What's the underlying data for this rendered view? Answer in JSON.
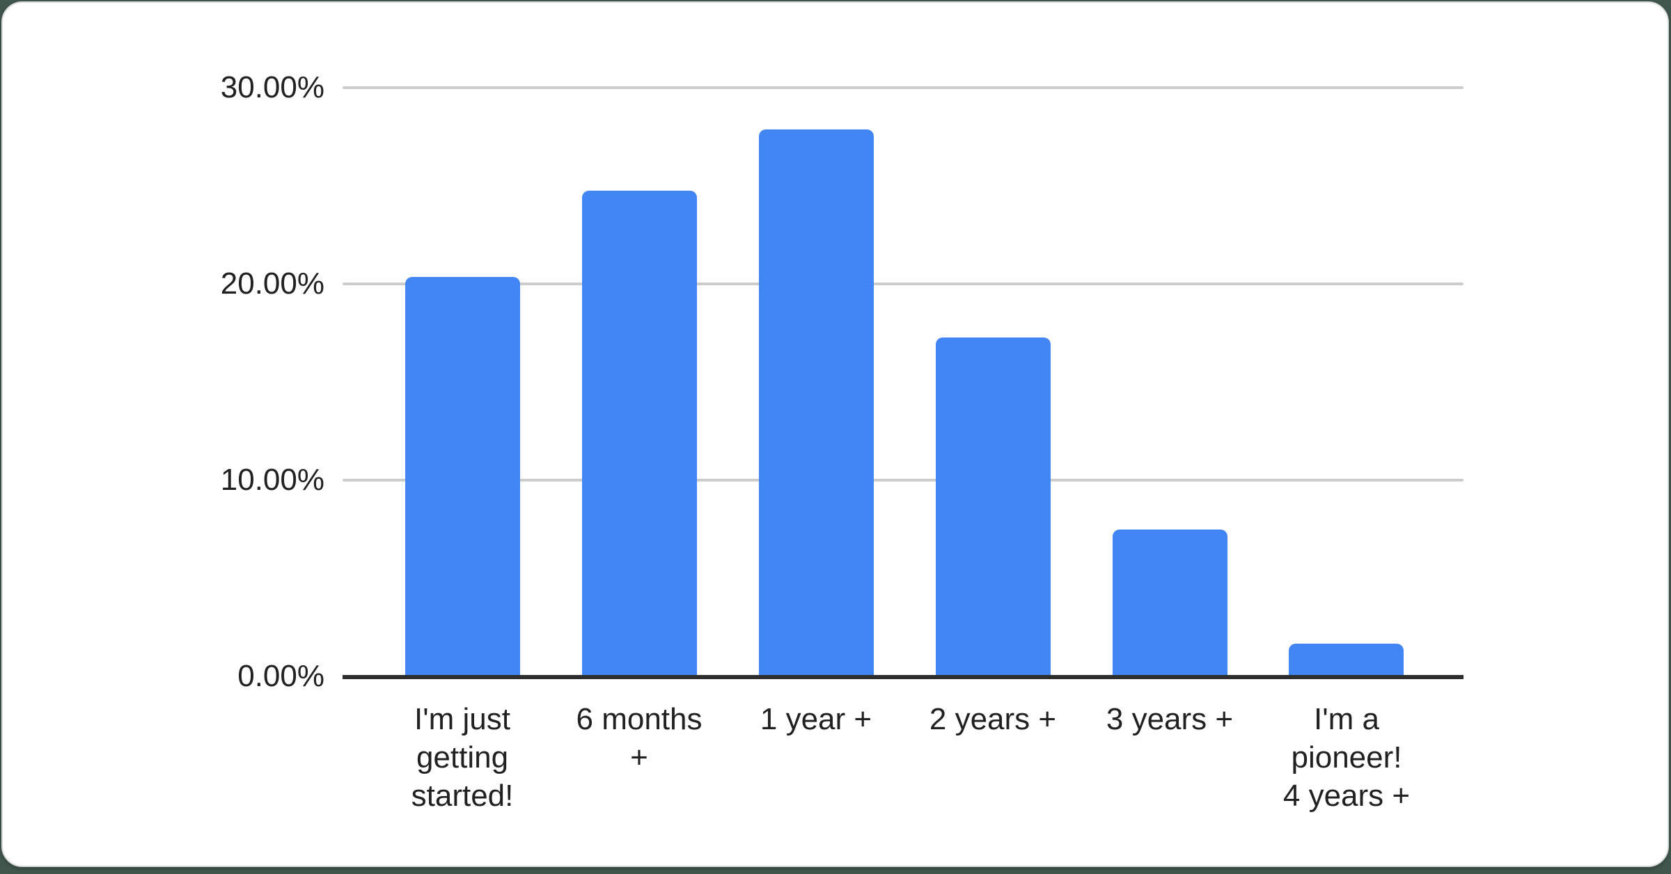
{
  "page": {
    "background_color": "#41564c",
    "card_color": "#ffffff",
    "card_border_color": "#d8dbdc"
  },
  "chart_data": {
    "type": "bar",
    "title": "",
    "xlabel": "",
    "ylabel": "",
    "unit": "%",
    "categories": [
      "I'm just getting started!",
      "6 months +",
      "1 year +",
      "2 years +",
      "3 years +",
      "I'm a pioneer! 4 years +"
    ],
    "category_label_lines": [
      [
        "I'm just",
        "getting",
        "started!"
      ],
      [
        "6 months",
        "+"
      ],
      [
        "1 year +"
      ],
      [
        "2 years +"
      ],
      [
        "3 years +"
      ],
      [
        "I'm a",
        "pioneer!",
        "4 years +"
      ]
    ],
    "values": [
      20.4,
      24.8,
      27.9,
      17.3,
      7.5,
      1.7
    ],
    "ylim": [
      0,
      30
    ],
    "yticks": [
      {
        "value": 30,
        "label": "30.00%"
      },
      {
        "value": 20,
        "label": "20.00%"
      },
      {
        "value": 10,
        "label": "10.00%"
      },
      {
        "value": 0,
        "label": "0.00%"
      }
    ],
    "grid": true,
    "legend_position": "none",
    "bar_color": "#4285f4",
    "gridline_color": "#cccccc",
    "axis_line_color": "#2e2e2e",
    "label_color": "#212121"
  }
}
